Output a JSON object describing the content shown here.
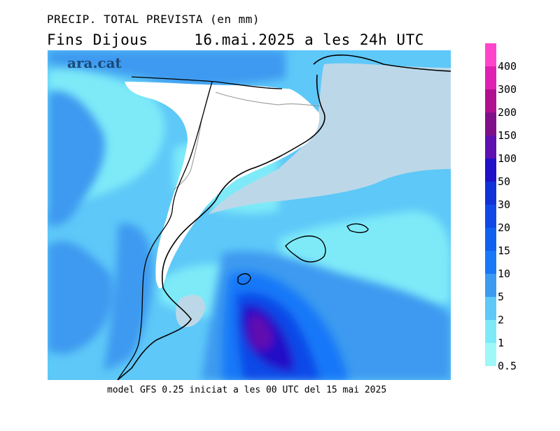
{
  "header": {
    "title": "PRECIP. TOTAL PREVISTA (en mm)",
    "subtitle": "Fins Dijous     16.mai.2025 a les 24h UTC"
  },
  "logo": "ara.cat",
  "footer": "model GFS 0.25 iniciat a les 00 UTC del 15 mai 2025",
  "legend": {
    "labels": [
      "400",
      "300",
      "200",
      "150",
      "100",
      "50",
      "30",
      "20",
      "15",
      "10",
      "5",
      "2",
      "1",
      "0.5"
    ],
    "colors": [
      "#ff44cc",
      "#e020b0",
      "#b01090",
      "#80108a",
      "#6010b0",
      "#2010c8",
      "#1030d8",
      "#1048e8",
      "#1060f0",
      "#1878f8",
      "#3c9af0",
      "#5ec8f8",
      "#7eeaf8",
      "#9ef8f8"
    ]
  },
  "map_colors": {
    "land_dry": "#ffffff",
    "sea_dry": "#bcd8e8",
    "coastline": "#000000",
    "border": "#999999"
  }
}
